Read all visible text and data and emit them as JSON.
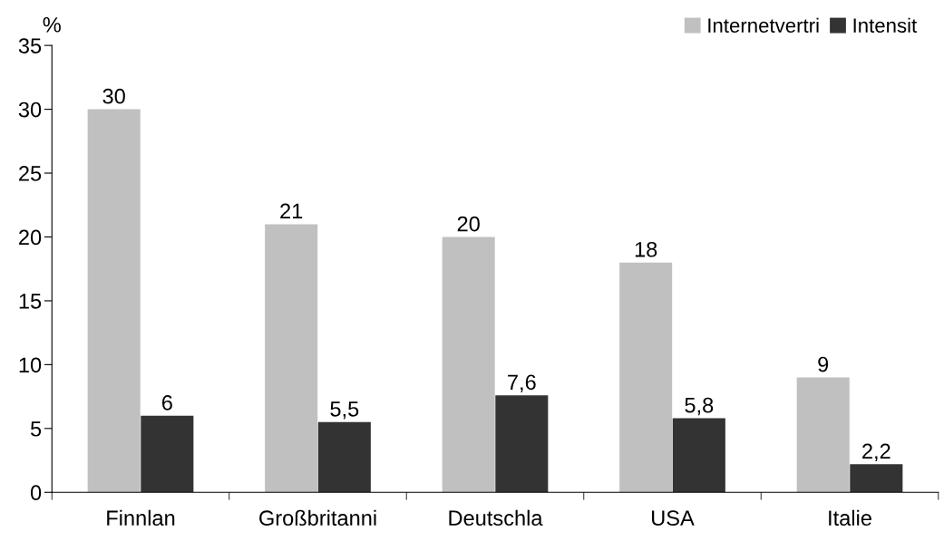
{
  "chart_data": {
    "type": "bar",
    "ylabel": "%",
    "categories": [
      "Finnlan",
      "Großbritanni",
      "Deutschla",
      "USA",
      "Italie"
    ],
    "series": [
      {
        "name": "Internetvertri",
        "color": "#c0c0c0",
        "values": [
          30,
          21,
          20,
          18,
          9
        ],
        "value_labels": [
          "30",
          "21",
          "20",
          "18",
          "9"
        ]
      },
      {
        "name": "Intensit",
        "color": "#333333",
        "values": [
          6,
          5.5,
          7.6,
          5.8,
          2.2
        ],
        "value_labels": [
          "6",
          "5,5",
          "7,6",
          "5,8",
          "2,2"
        ]
      }
    ],
    "ylim": [
      0,
      35
    ],
    "yticks": [
      0,
      5,
      10,
      15,
      20,
      25,
      30,
      35
    ],
    "grid": false,
    "legend": "top right"
  }
}
